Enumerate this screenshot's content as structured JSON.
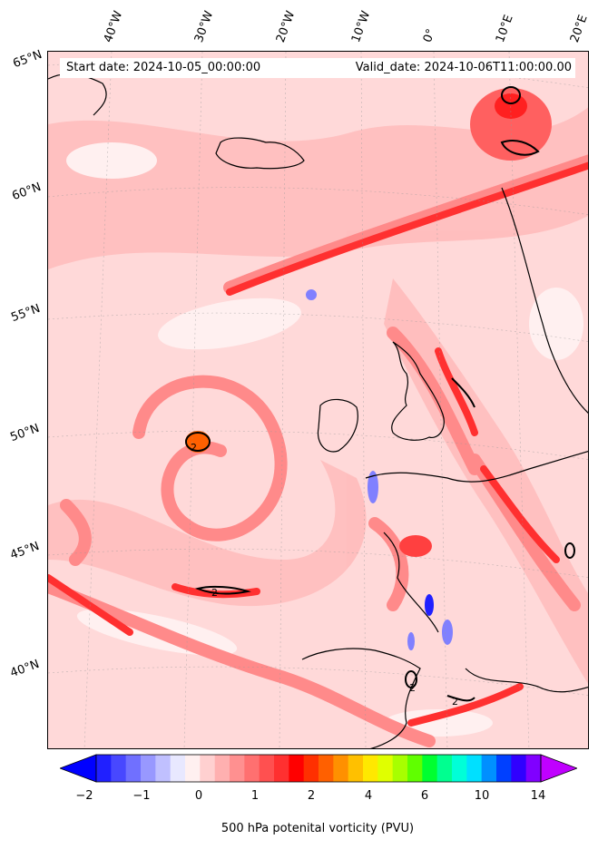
{
  "header": {
    "start_date": "Start date: 2024-10-05_00:00:00",
    "valid_date": "Valid_date: 2024-10-06T11:00:00.00"
  },
  "axes": {
    "longitude_labels": [
      "40°W",
      "30°W",
      "20°W",
      "10°W",
      "0°",
      "10°E",
      "20°E"
    ],
    "latitude_labels": [
      "65°N",
      "60°N",
      "55°N",
      "50°N",
      "45°N",
      "40°N"
    ]
  },
  "contours": {
    "pv2_label": "2"
  },
  "colorbar": {
    "title": "500 hPa potenital vorticity (PVU)",
    "tick_labels": [
      "−2",
      "−1",
      "0",
      "1",
      "2",
      "4",
      "6",
      "10",
      "14"
    ],
    "colors": [
      "#0000ff",
      "#2020ff",
      "#4848ff",
      "#7070ff",
      "#9898ff",
      "#c0c0ff",
      "#e8e8ff",
      "#fff0f0",
      "#ffd0d0",
      "#ffb0b0",
      "#ff9090",
      "#ff7070",
      "#ff5050",
      "#ff3030",
      "#ff0000",
      "#ff3000",
      "#ff6000",
      "#ff9000",
      "#ffc000",
      "#ffe800",
      "#e0ff00",
      "#a8ff00",
      "#60ff00",
      "#00ff30",
      "#00ff90",
      "#00ffd8",
      "#00e0ff",
      "#0090ff",
      "#0040ff",
      "#3000ff",
      "#8000ff",
      "#c000ff"
    ]
  }
}
